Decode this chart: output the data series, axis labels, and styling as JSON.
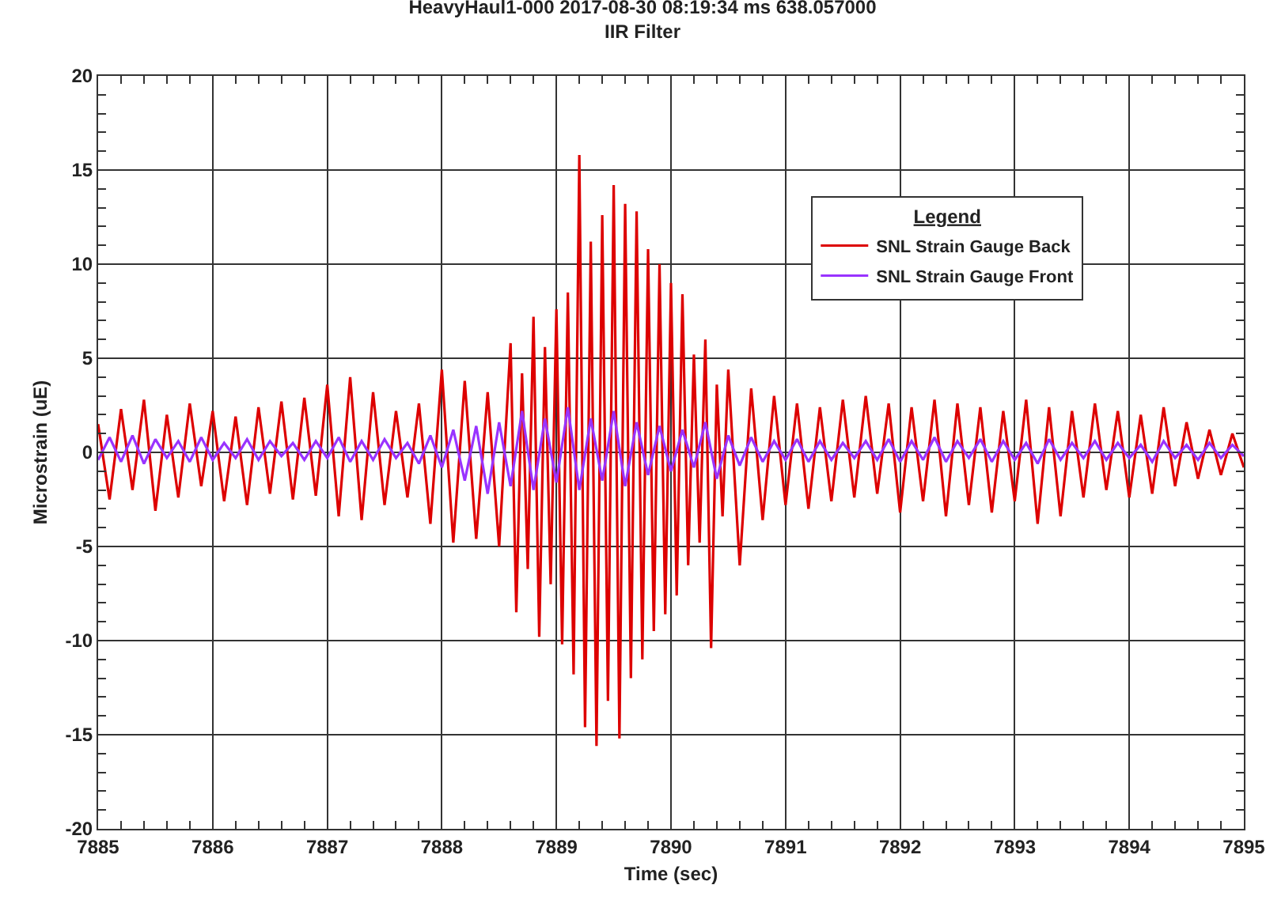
{
  "chart_data": {
    "type": "line",
    "title": "HeavyHaul1-000 2017-08-30 08:19:34 ms 638.057000",
    "subtitle": "IIR Filter",
    "xlabel": "Time (sec)",
    "ylabel": "Microstrain (uE)",
    "legend_title": "Legend",
    "legend": "top right",
    "grid": true,
    "line_style": "solid",
    "xlim": [
      7885,
      7895
    ],
    "xticks": [
      7885,
      7886,
      7887,
      7888,
      7889,
      7890,
      7891,
      7892,
      7893,
      7894,
      7895
    ],
    "ylim": [
      -20,
      20
    ],
    "yticks": [
      -20,
      -15,
      -10,
      -5,
      0,
      5,
      10,
      15,
      20
    ],
    "series": [
      {
        "name": "SNL Strain Gauge Back",
        "color": "#dd0000",
        "x": [
          7885.0,
          7885.1,
          7885.2,
          7885.3,
          7885.4,
          7885.5,
          7885.6,
          7885.7,
          7885.8,
          7885.9,
          7886.0,
          7886.1,
          7886.2,
          7886.3,
          7886.4,
          7886.5,
          7886.6,
          7886.7,
          7886.8,
          7886.9,
          7887.0,
          7887.1,
          7887.2,
          7887.3,
          7887.4,
          7887.5,
          7887.6,
          7887.7,
          7887.8,
          7887.9,
          7888.0,
          7888.1,
          7888.2,
          7888.3,
          7888.4,
          7888.5,
          7888.6,
          7888.65,
          7888.7,
          7888.75,
          7888.8,
          7888.85,
          7888.9,
          7888.95,
          7889.0,
          7889.05,
          7889.1,
          7889.15,
          7889.2,
          7889.25,
          7889.3,
          7889.35,
          7889.4,
          7889.45,
          7889.5,
          7889.55,
          7889.6,
          7889.65,
          7889.7,
          7889.75,
          7889.8,
          7889.85,
          7889.9,
          7889.95,
          7890.0,
          7890.05,
          7890.1,
          7890.15,
          7890.2,
          7890.25,
          7890.3,
          7890.35,
          7890.4,
          7890.45,
          7890.5,
          7890.6,
          7890.7,
          7890.8,
          7890.9,
          7891.0,
          7891.1,
          7891.2,
          7891.3,
          7891.4,
          7891.5,
          7891.6,
          7891.7,
          7891.8,
          7891.9,
          7892.0,
          7892.1,
          7892.2,
          7892.3,
          7892.4,
          7892.5,
          7892.6,
          7892.7,
          7892.8,
          7892.9,
          7893.0,
          7893.1,
          7893.2,
          7893.3,
          7893.4,
          7893.5,
          7893.6,
          7893.7,
          7893.8,
          7893.9,
          7894.0,
          7894.1,
          7894.2,
          7894.3,
          7894.4,
          7894.5,
          7894.6,
          7894.7,
          7894.8,
          7894.9,
          7895.0
        ],
        "values": [
          1.5,
          -2.5,
          2.3,
          -2.0,
          2.8,
          -3.1,
          2.0,
          -2.4,
          2.6,
          -1.8,
          2.2,
          -2.6,
          1.9,
          -2.8,
          2.4,
          -2.2,
          2.7,
          -2.5,
          2.9,
          -2.3,
          3.6,
          -3.4,
          4.0,
          -3.6,
          3.2,
          -2.8,
          2.2,
          -2.4,
          2.6,
          -3.8,
          4.4,
          -4.8,
          3.8,
          -4.6,
          3.2,
          -5.0,
          5.8,
          -8.5,
          4.2,
          -6.2,
          7.2,
          -9.8,
          5.6,
          -7.0,
          7.6,
          -10.2,
          8.5,
          -11.8,
          15.8,
          -14.6,
          11.2,
          -15.6,
          12.6,
          -13.2,
          14.2,
          -15.2,
          13.2,
          -12.0,
          12.8,
          -11.0,
          10.8,
          -9.5,
          10.0,
          -8.6,
          9.0,
          -7.6,
          8.4,
          -6.0,
          5.2,
          -4.8,
          6.0,
          -10.4,
          3.6,
          -3.4,
          4.4,
          -6.0,
          3.4,
          -3.6,
          3.0,
          -2.8,
          2.6,
          -3.0,
          2.4,
          -2.6,
          2.8,
          -2.4,
          3.0,
          -2.2,
          2.6,
          -3.2,
          2.4,
          -2.6,
          2.8,
          -3.4,
          2.6,
          -2.8,
          2.4,
          -3.2,
          2.2,
          -2.6,
          2.8,
          -3.8,
          2.4,
          -3.4,
          2.2,
          -2.4,
          2.6,
          -2.0,
          2.2,
          -2.4,
          2.0,
          -2.2,
          2.4,
          -1.8,
          1.6,
          -1.4,
          1.2,
          -1.2,
          1.0,
          -0.8
        ]
      },
      {
        "name": "SNL Strain Gauge Front",
        "color": "#9933ff",
        "x": [
          7885.0,
          7885.1,
          7885.2,
          7885.3,
          7885.4,
          7885.5,
          7885.6,
          7885.7,
          7885.8,
          7885.9,
          7886.0,
          7886.1,
          7886.2,
          7886.3,
          7886.4,
          7886.5,
          7886.6,
          7886.7,
          7886.8,
          7886.9,
          7887.0,
          7887.1,
          7887.2,
          7887.3,
          7887.4,
          7887.5,
          7887.6,
          7887.7,
          7887.8,
          7887.9,
          7888.0,
          7888.1,
          7888.2,
          7888.3,
          7888.4,
          7888.5,
          7888.6,
          7888.7,
          7888.8,
          7888.9,
          7889.0,
          7889.1,
          7889.2,
          7889.3,
          7889.4,
          7889.5,
          7889.6,
          7889.7,
          7889.8,
          7889.9,
          7890.0,
          7890.1,
          7890.2,
          7890.3,
          7890.4,
          7890.5,
          7890.6,
          7890.7,
          7890.8,
          7890.9,
          7891.0,
          7891.1,
          7891.2,
          7891.3,
          7891.4,
          7891.5,
          7891.6,
          7891.7,
          7891.8,
          7891.9,
          7892.0,
          7892.1,
          7892.2,
          7892.3,
          7892.4,
          7892.5,
          7892.6,
          7892.7,
          7892.8,
          7892.9,
          7893.0,
          7893.1,
          7893.2,
          7893.3,
          7893.4,
          7893.5,
          7893.6,
          7893.7,
          7893.8,
          7893.9,
          7894.0,
          7894.1,
          7894.2,
          7894.3,
          7894.4,
          7894.5,
          7894.6,
          7894.7,
          7894.8,
          7894.9,
          7895.0
        ],
        "values": [
          -0.4,
          0.8,
          -0.5,
          0.9,
          -0.6,
          0.7,
          -0.3,
          0.6,
          -0.5,
          0.8,
          -0.4,
          0.5,
          -0.3,
          0.7,
          -0.4,
          0.6,
          -0.2,
          0.5,
          -0.4,
          0.6,
          -0.3,
          0.8,
          -0.5,
          0.6,
          -0.4,
          0.7,
          -0.3,
          0.5,
          -0.6,
          0.9,
          -0.8,
          1.2,
          -1.5,
          1.4,
          -2.2,
          1.6,
          -1.8,
          2.2,
          -2.0,
          1.8,
          -1.6,
          2.4,
          -2.0,
          1.8,
          -1.5,
          2.2,
          -1.8,
          1.6,
          -1.2,
          1.4,
          -1.0,
          1.2,
          -0.8,
          1.6,
          -1.4,
          0.9,
          -0.7,
          0.8,
          -0.5,
          0.6,
          -0.4,
          0.7,
          -0.5,
          0.6,
          -0.4,
          0.5,
          -0.3,
          0.6,
          -0.4,
          0.7,
          -0.5,
          0.6,
          -0.4,
          0.8,
          -0.5,
          0.6,
          -0.3,
          0.7,
          -0.5,
          0.6,
          -0.4,
          0.5,
          -0.6,
          0.7,
          -0.4,
          0.5,
          -0.3,
          0.6,
          -0.4,
          0.5,
          -0.3,
          0.4,
          -0.5,
          0.6,
          -0.3,
          0.4,
          -0.4,
          0.5,
          -0.3,
          0.4,
          -0.2
        ]
      }
    ]
  }
}
